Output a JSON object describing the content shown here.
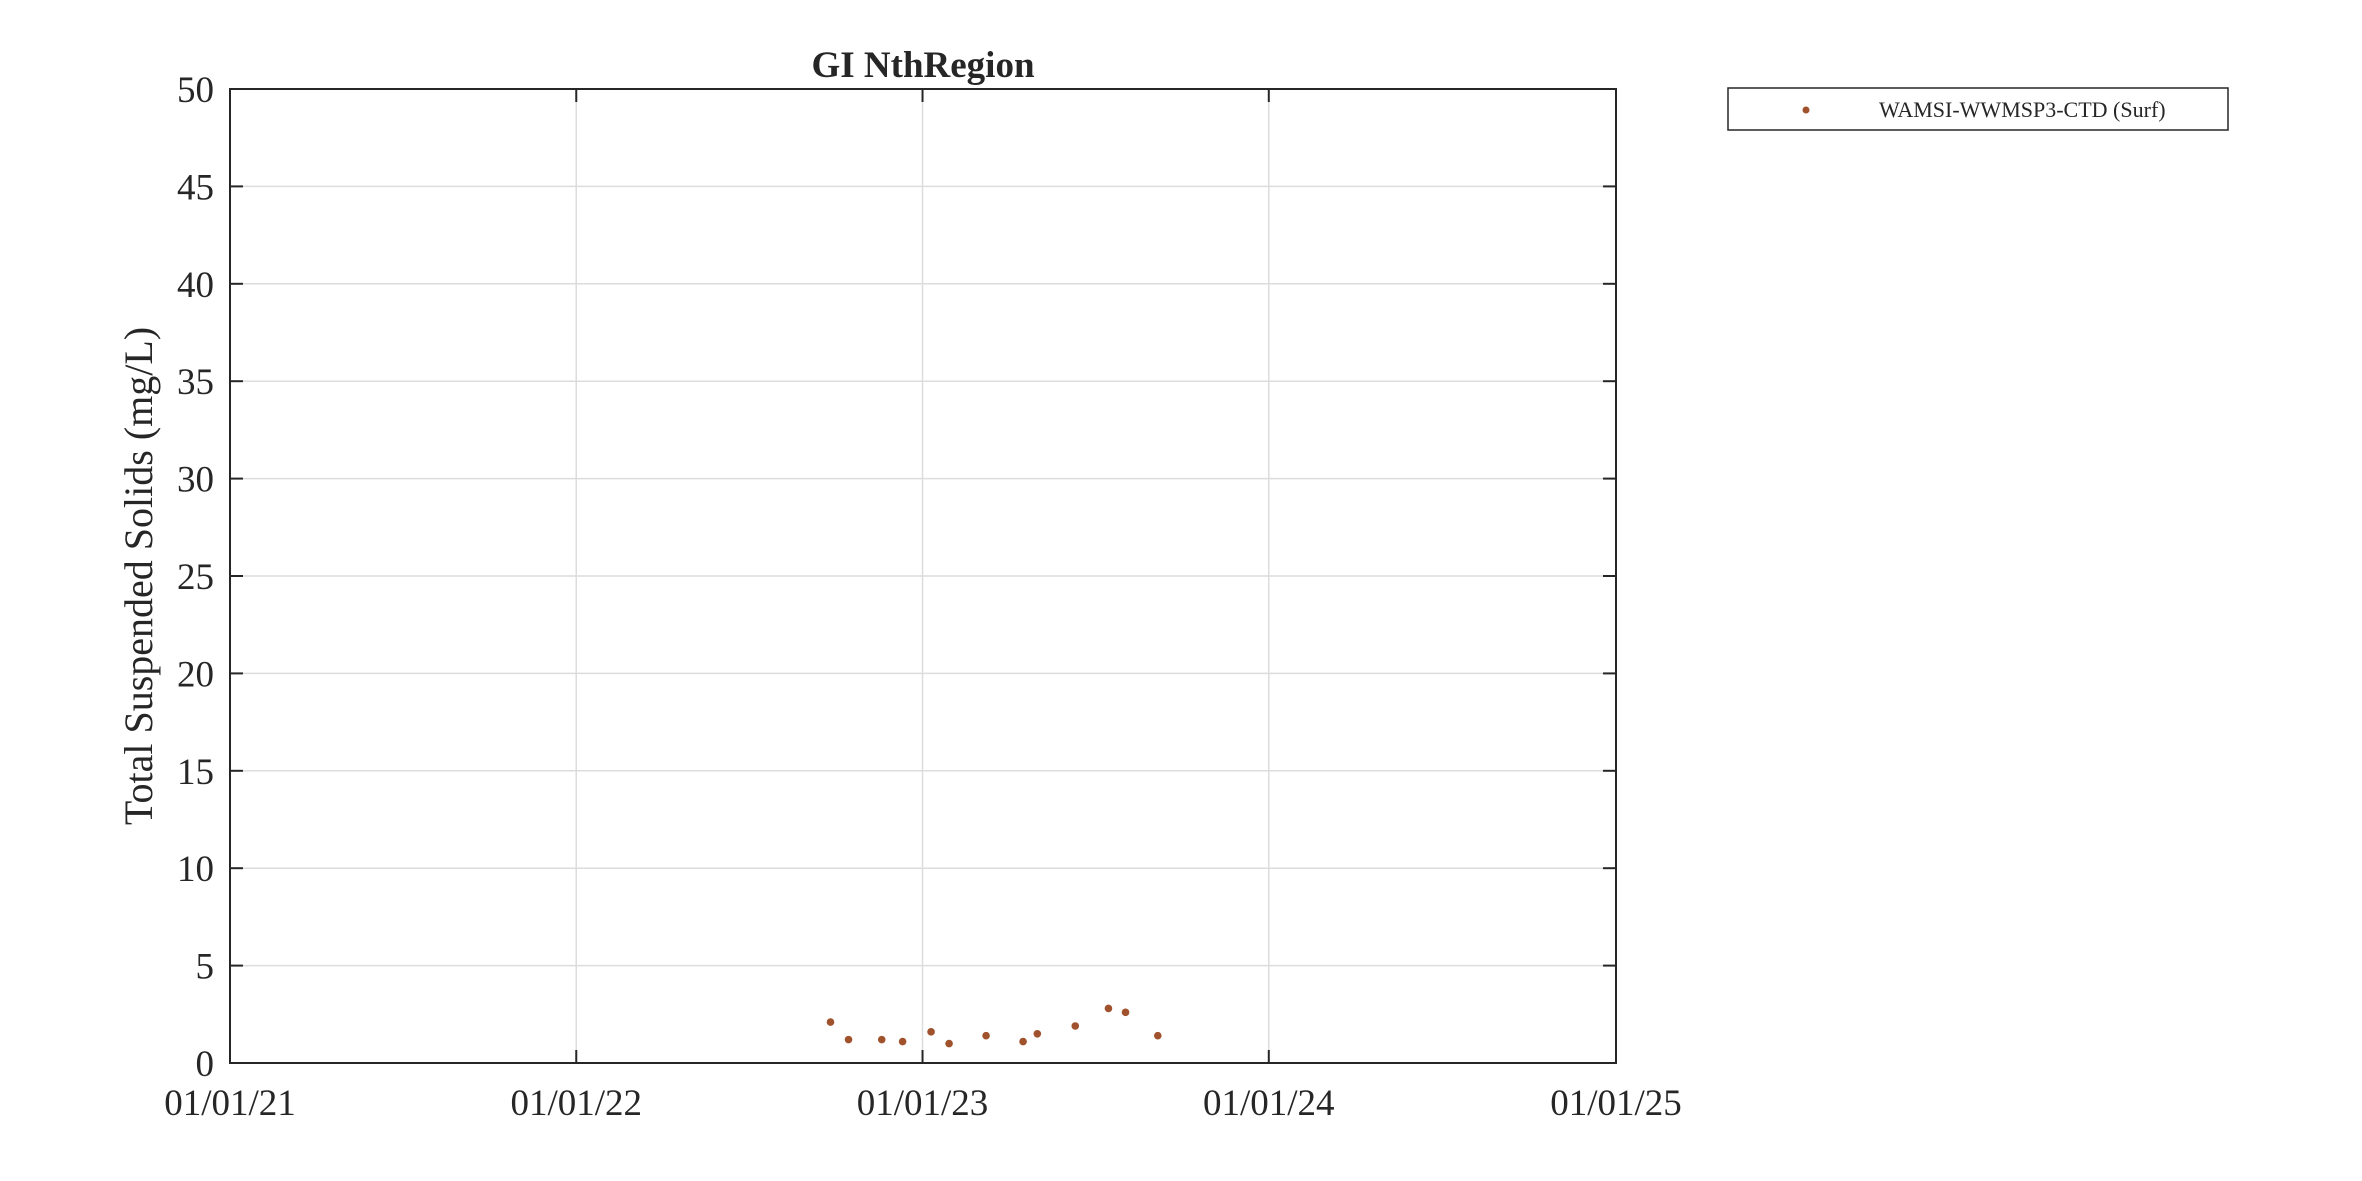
{
  "chart_data": {
    "type": "scatter",
    "title": "GI NthRegion",
    "xlabel": "",
    "ylabel": "Total Suspended Solids (mg/L)",
    "x_axis_type": "date",
    "xlim": [
      "2021-01-01",
      "2025-01-01"
    ],
    "x_ticks": [
      "2021-01-01",
      "2022-01-01",
      "2023-01-01",
      "2024-01-01",
      "2025-01-01"
    ],
    "x_tick_labels": [
      "01/01/21",
      "01/01/22",
      "01/01/23",
      "01/01/24",
      "01/01/25"
    ],
    "ylim": [
      0,
      50
    ],
    "y_ticks": [
      0,
      5,
      10,
      15,
      20,
      25,
      30,
      35,
      40,
      45,
      50
    ],
    "y_tick_labels": [
      "0",
      "5",
      "10",
      "15",
      "20",
      "25",
      "30",
      "35",
      "40",
      "45",
      "50"
    ],
    "grid": true,
    "legend_position": "outside-top-right",
    "series": [
      {
        "name": "WAMSI-WWMSP3-CTD (Surf)",
        "color": "#a0522d",
        "marker": "dot",
        "points": [
          {
            "x": "2022-09-26",
            "y": 2.1
          },
          {
            "x": "2022-10-15",
            "y": 1.2
          },
          {
            "x": "2022-11-19",
            "y": 1.2
          },
          {
            "x": "2022-12-11",
            "y": 1.1
          },
          {
            "x": "2023-01-10",
            "y": 1.6
          },
          {
            "x": "2023-01-29",
            "y": 1.0
          },
          {
            "x": "2023-03-09",
            "y": 1.4
          },
          {
            "x": "2023-04-17",
            "y": 1.1
          },
          {
            "x": "2023-05-02",
            "y": 1.5
          },
          {
            "x": "2023-06-11",
            "y": 1.9
          },
          {
            "x": "2023-07-16",
            "y": 2.8
          },
          {
            "x": "2023-08-03",
            "y": 2.6
          },
          {
            "x": "2023-09-06",
            "y": 1.4
          }
        ]
      }
    ]
  }
}
